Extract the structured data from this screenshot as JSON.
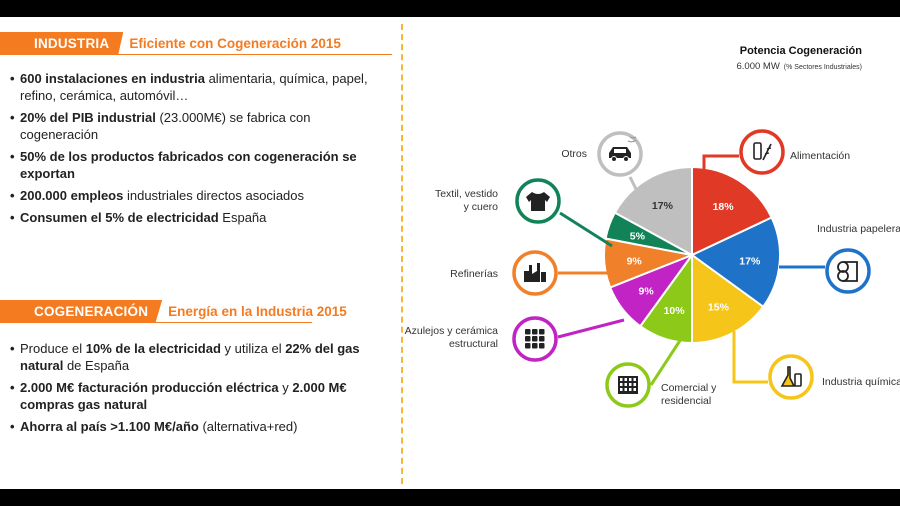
{
  "industria": {
    "tag": "INDUSTRIA",
    "subtitle": "Eficiente con Cogeneración 2015",
    "bullets": [
      {
        "b1": "600 instalaciones en industria",
        "t1": " alimentaria, química, papel, refino, cerámica, automóvil…"
      },
      {
        "b1": "20% del PIB industrial",
        "t1": " (23.000M€) se fabrica con cogeneración"
      },
      {
        "b1": "50% de los productos fabricados con cogeneración se exportan",
        "t1": ""
      },
      {
        "b1": "200.000 empleos",
        "t1": " industriales directos asociados"
      },
      {
        "b1": "Consumen el 5% de electricidad",
        "t1": " España"
      }
    ]
  },
  "cogeneracion": {
    "tag": "COGENERACIÓN",
    "subtitle": "Energía en la Industria 2015",
    "bullets": [
      {
        "t0": "Produce  el ",
        "b1": "10% de la electricidad",
        "t1": " y utiliza el ",
        "b2": "22% del gas natural",
        "t2": " de España"
      },
      {
        "t0": "",
        "b1": "2.000 M€ facturación producción eléctrica",
        "t1": " y ",
        "b2": "2.000 M€ compras gas natural",
        "t2": ""
      },
      {
        "t0": "",
        "b1": "Ahorra al país >1.100 M€/año",
        "t1": " (alternativa+red)",
        "b2": "",
        "t2": ""
      }
    ]
  },
  "chart_data": {
    "type": "pie",
    "title": "Potencia Cogeneración",
    "subtitle_value": "6.000 MW",
    "subtitle_note": "(% Sectores Industriales)",
    "categories": [
      "Alimentación",
      "Industria papelera",
      "Industria química",
      "Comercial y residencial",
      "Azulejos y cerámica estructural",
      "Refinerías",
      "Textil, vestido y cuero",
      "Otros"
    ],
    "values": [
      18,
      17,
      15,
      10,
      9,
      9,
      5,
      17
    ],
    "value_labels": [
      "18%",
      "17%",
      "15%",
      "10%",
      "9%",
      "9%",
      "5%",
      "17%"
    ],
    "colors": [
      "#e03a26",
      "#1e73c8",
      "#f5c619",
      "#8cc919",
      "#c223c4",
      "#f0802a",
      "#128359",
      "#bfbfbf"
    ],
    "icons": [
      "food-icon",
      "paper-roll-icon",
      "flask-icon",
      "building-icon",
      "tiles-icon",
      "refinery-icon",
      "tshirt-icon",
      "car-icon"
    ]
  }
}
